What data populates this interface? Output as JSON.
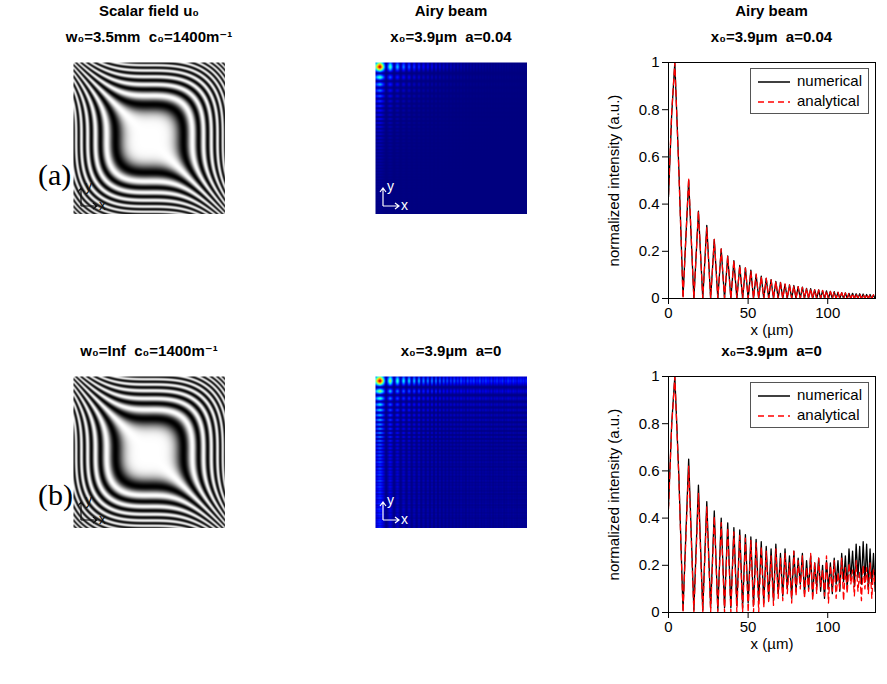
{
  "chart_data": [
    {
      "panel_label": "(a)",
      "type": "image",
      "title": "Scalar field u₀",
      "subtitle": "w₀=3.5mm  c₀=1400m⁻¹",
      "x_label": "x",
      "y_label": "y",
      "tick_labels": false
    },
    {
      "type": "heatmap",
      "title": "Airy beam",
      "subtitle": "x₀=3.9µm  a=0.04",
      "x_label": "x",
      "y_label": "y",
      "tick_labels": false,
      "zlim": [
        0,
        1
      ]
    },
    {
      "type": "line",
      "title": "Airy beam",
      "subtitle": "x₀=3.9µm  a=0.04",
      "x_label": "x (µm)",
      "y_label": "normalized intensity (a.u.)",
      "xlim": [
        0,
        130
      ],
      "xticks": [
        0,
        50,
        100
      ],
      "ylim": [
        0,
        1
      ],
      "yticks": [
        0,
        0.2,
        0.4,
        0.6,
        0.8,
        1
      ],
      "legend": "top-right",
      "x": [
        0,
        2,
        3.97,
        6.5,
        9.12,
        12.67,
        15.94,
        18.8,
        21.53,
        24.04,
        26.47,
        28.75,
        30.98,
        33.1,
        35.19,
        37.19,
        39.16,
        41.06,
        42.94,
        44.75,
        46.55,
        48.3,
        50.03,
        51.72,
        53.4,
        55.03,
        56.66,
        58.25,
        59.83,
        61.38,
        62.92,
        64.43,
        65.93,
        67.41,
        68.88,
        70.32,
        71.76,
        73.18,
        74.59,
        75.98,
        77.37,
        78.73,
        80.09,
        81.43,
        82.77,
        84.09,
        85.41,
        86.71,
        88,
        89.28,
        90.55,
        91.81,
        93.07,
        94.31,
        95.54,
        96.76,
        97.98,
        99.22,
        100.46,
        101.67,
        102.88,
        104.07,
        105.26,
        106.43,
        107.6,
        108.77,
        109.94,
        111.08,
        112.22,
        113.36,
        114.49,
        115.61,
        116.73,
        117.85,
        118.97,
        120.07,
        121.17,
        122.26,
        123.35,
        124.43,
        125.51,
        126.59,
        127.67,
        128.73,
        129.79
      ],
      "series": [
        {
          "name": "numerical",
          "color": "#000000",
          "line_style": "solid",
          "values": [
            0.43,
            0.78,
            1,
            0.55,
            0.01,
            0.5,
            0,
            0.37,
            0,
            0.31,
            0,
            0.25,
            0,
            0.21,
            0,
            0.18,
            0,
            0.16,
            0,
            0.14,
            0,
            0.13,
            0,
            0.12,
            0,
            0.1,
            0,
            0.095,
            0,
            0.085,
            0,
            0.08,
            0,
            0.072,
            0,
            0.068,
            0,
            0.06,
            0,
            0.058,
            0,
            0.055,
            0,
            0.05,
            0,
            0.048,
            0,
            0.043,
            0,
            0.042,
            0,
            0.037,
            0,
            0.036,
            0,
            0.033,
            0,
            0.032,
            0,
            0.03,
            0,
            0.029,
            0,
            0.026,
            0,
            0.025,
            0,
            0.024,
            0,
            0.022,
            0,
            0.022,
            0,
            0.02,
            0,
            0.02,
            0,
            0.019,
            0,
            0.017,
            0,
            0.017,
            0,
            0.015,
            0
          ]
        },
        {
          "name": "analytical",
          "color": "#ff0000",
          "line_style": "dashed",
          "values": [
            0.44,
            0.79,
            1,
            0.54,
            0,
            0.51,
            0,
            0.37,
            0,
            0.3,
            0,
            0.25,
            0,
            0.21,
            0,
            0.18,
            0,
            0.16,
            0,
            0.14,
            0,
            0.13,
            0,
            0.115,
            0,
            0.104,
            0,
            0.094,
            0,
            0.086,
            0,
            0.079,
            0,
            0.073,
            0,
            0.067,
            0,
            0.062,
            0,
            0.058,
            0,
            0.054,
            0,
            0.05,
            0,
            0.047,
            0,
            0.044,
            0,
            0.041,
            0,
            0.038,
            0,
            0.036,
            0,
            0.034,
            0,
            0.032,
            0,
            0.03,
            0,
            0.028,
            0,
            0.027,
            0,
            0.025,
            0,
            0.024,
            0,
            0.023,
            0,
            0.022,
            0,
            0.021,
            0,
            0.02,
            0,
            0.019,
            0,
            0.018,
            0,
            0.017,
            0,
            0.016,
            0
          ]
        }
      ]
    },
    {
      "panel_label": "(b)",
      "type": "image",
      "title": "w₀=Inf  c₀=1400m⁻¹",
      "x_label": "x",
      "y_label": "y",
      "tick_labels": false
    },
    {
      "type": "heatmap",
      "title": "x₀=3.9µm  a=0",
      "x_label": "x",
      "y_label": "y",
      "tick_labels": false,
      "zlim": [
        0,
        1
      ]
    },
    {
      "type": "line",
      "title": "x₀=3.9µm  a=0",
      "x_label": "x (µm)",
      "y_label": "normalized intensity (a.u.)",
      "xlim": [
        0,
        130
      ],
      "xticks": [
        0,
        50,
        100
      ],
      "ylim": [
        0,
        1
      ],
      "yticks": [
        0,
        0.2,
        0.4,
        0.6,
        0.8,
        1
      ],
      "legend": "top-right",
      "x": [
        0,
        2,
        3.97,
        6.5,
        9.12,
        12.67,
        15.94,
        18.8,
        21.53,
        24.04,
        26.47,
        28.75,
        30.98,
        33.1,
        35.19,
        37.19,
        39.16,
        41.06,
        42.94,
        44.75,
        46.55,
        48.3,
        50.03,
        51.72,
        53.4,
        55.03,
        56.66,
        58.25,
        59.83,
        61.38,
        62.92,
        64.43,
        65.93,
        67.41,
        68.88,
        70.32,
        71.76,
        73.18,
        74.59,
        75.98,
        77.37,
        78.73,
        80.09,
        81.43,
        82.77,
        84.09,
        85.41,
        86.71,
        88,
        89.28,
        90.55,
        91.81,
        93.07,
        94.31,
        95.54,
        96.76,
        97.98,
        99.22,
        100.46,
        101.67,
        102.88,
        104.07,
        105.26,
        106.43,
        107.6,
        108.77,
        109.94,
        111.08,
        112.22,
        113.36,
        114.49,
        115.61,
        116.73,
        117.85,
        118.97,
        120.07,
        121.17,
        122.26,
        123.35,
        124.43,
        125.51,
        126.59,
        127.67,
        128.73,
        129.79
      ],
      "series": [
        {
          "name": "numerical",
          "color": "#000000",
          "line_style": "solid",
          "values": [
            0.45,
            0.8,
            1,
            0.58,
            0.01,
            0.65,
            0.01,
            0.54,
            0.01,
            0.47,
            0.02,
            0.43,
            0.01,
            0.4,
            0.02,
            0.38,
            0.02,
            0.36,
            0.03,
            0.35,
            0.02,
            0.33,
            0.04,
            0.32,
            0.03,
            0.31,
            0.05,
            0.3,
            0.04,
            0.28,
            0.06,
            0.27,
            0.05,
            0.29,
            0.08,
            0.25,
            0.07,
            0.27,
            0.1,
            0.24,
            0.06,
            0.26,
            0.09,
            0.23,
            0.12,
            0.25,
            0.08,
            0.22,
            0.1,
            0.24,
            0.07,
            0.21,
            0.11,
            0.23,
            0.09,
            0.2,
            0.06,
            0.22,
            0.1,
            0.21,
            0.08,
            0.23,
            0.12,
            0.22,
            0.09,
            0.25,
            0.13,
            0.24,
            0.1,
            0.27,
            0.14,
            0.26,
            0.11,
            0.29,
            0.15,
            0.28,
            0.12,
            0.3,
            0.13,
            0.29,
            0.1,
            0.27,
            0.12,
            0.25,
            0.09
          ]
        },
        {
          "name": "analytical",
          "color": "#ff0000",
          "line_style": "dashed",
          "values": [
            0.44,
            0.79,
            1,
            0.57,
            0,
            0.62,
            0,
            0.505,
            0,
            0.447,
            0,
            0.408,
            0,
            0.381,
            0,
            0.359,
            0,
            0.342,
            0,
            0.327,
            0,
            0.315,
            0,
            0.305,
            0,
            0.295,
            0,
            0.28,
            0.02,
            0.26,
            0.04,
            0.24,
            0.03,
            0.27,
            0.06,
            0.23,
            0.05,
            0.25,
            0.08,
            0.21,
            0.04,
            0.26,
            0.07,
            0.22,
            0.1,
            0.24,
            0.06,
            0.19,
            0.09,
            0.25,
            0.05,
            0.21,
            0.08,
            0.23,
            0.11,
            0.18,
            0.07,
            0.24,
            0.04,
            0.2,
            0.09,
            0.22,
            0.06,
            0.17,
            0.1,
            0.23,
            0.05,
            0.19,
            0.08,
            0.21,
            0.12,
            0.18,
            0.07,
            0.22,
            0.09,
            0.17,
            0.05,
            0.2,
            0.1,
            0.19,
            0.08,
            0.21,
            0.06,
            0.18,
            0.11
          ]
        }
      ]
    }
  ]
}
